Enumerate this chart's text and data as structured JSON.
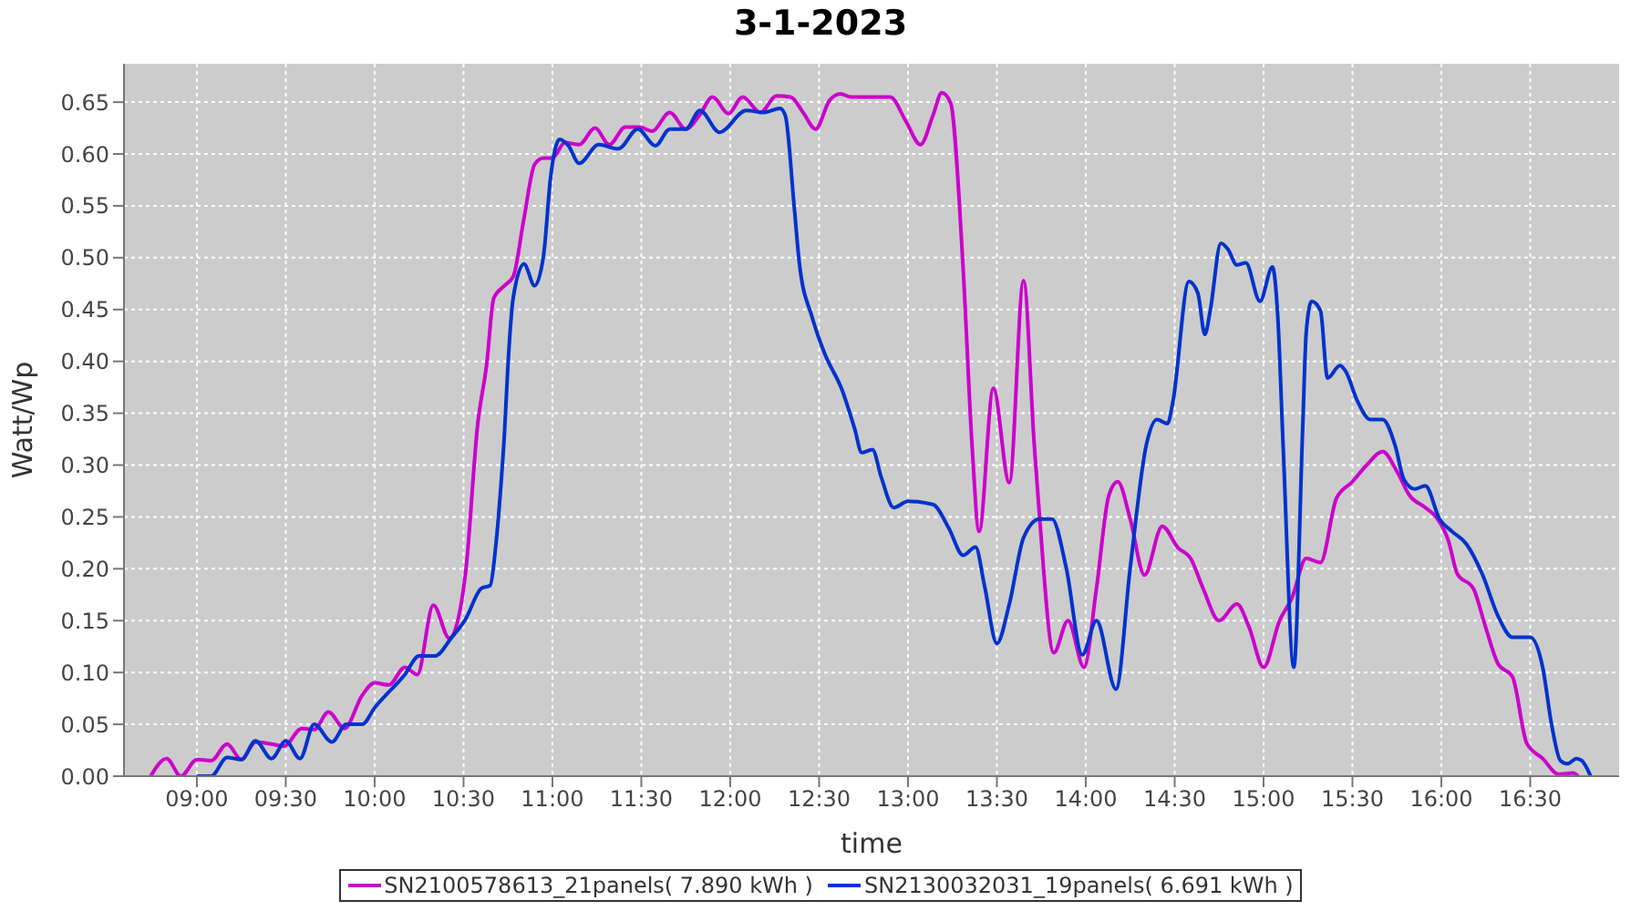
{
  "chart_data": {
    "type": "line",
    "title": "3-1-2023",
    "xlabel": "time",
    "ylabel": "Watt/Wp",
    "xlim": [
      8.59,
      17.0
    ],
    "ylim": [
      0,
      0.687
    ],
    "xticks": [
      {
        "value": 9,
        "label": "09:00"
      },
      {
        "value": 9.5,
        "label": "09:30"
      },
      {
        "value": 10,
        "label": "10:00"
      },
      {
        "value": 10.5,
        "label": "10:30"
      },
      {
        "value": 11,
        "label": "11:00"
      },
      {
        "value": 11.5,
        "label": "11:30"
      },
      {
        "value": 12,
        "label": "12:00"
      },
      {
        "value": 12.5,
        "label": "12:30"
      },
      {
        "value": 13,
        "label": "13:00"
      },
      {
        "value": 13.5,
        "label": "13:30"
      },
      {
        "value": 14,
        "label": "14:00"
      },
      {
        "value": 14.5,
        "label": "14:30"
      },
      {
        "value": 15,
        "label": "15:00"
      },
      {
        "value": 15.5,
        "label": "15:30"
      },
      {
        "value": 16,
        "label": "16:00"
      },
      {
        "value": 16.5,
        "label": "16:30"
      }
    ],
    "yticks": [
      {
        "value": 0,
        "label": "0.00"
      },
      {
        "value": 0.05,
        "label": "0.05"
      },
      {
        "value": 0.1,
        "label": "0.10"
      },
      {
        "value": 0.15,
        "label": "0.15"
      },
      {
        "value": 0.2,
        "label": "0.20"
      },
      {
        "value": 0.25,
        "label": "0.25"
      },
      {
        "value": 0.3,
        "label": "0.30"
      },
      {
        "value": 0.35,
        "label": "0.35"
      },
      {
        "value": 0.4,
        "label": "0.40"
      },
      {
        "value": 0.45,
        "label": "0.45"
      },
      {
        "value": 0.5,
        "label": "0.50"
      },
      {
        "value": 0.55,
        "label": "0.55"
      },
      {
        "value": 0.6,
        "label": "0.60"
      },
      {
        "value": 0.65,
        "label": "0.65"
      }
    ],
    "grid": true,
    "legend": "bottom",
    "line_style": "solid",
    "series": [
      {
        "name": "SN2100578613_21panels( 7.890 kWh )",
        "color": "#cc00cc",
        "x": [
          8.74,
          8.83,
          8.91,
          9.0,
          9.08,
          9.17,
          9.25,
          9.33,
          9.42,
          9.49,
          9.59,
          9.66,
          9.74,
          9.83,
          9.93,
          10.0,
          10.08,
          10.17,
          10.24,
          10.33,
          10.42,
          10.51,
          10.58,
          10.63,
          10.67,
          10.73,
          10.78,
          10.84,
          10.9,
          10.95,
          11.0,
          11.07,
          11.15,
          11.24,
          11.32,
          11.41,
          11.49,
          11.56,
          11.66,
          11.75,
          11.83,
          11.9,
          11.99,
          12.07,
          12.17,
          12.26,
          12.34,
          12.41,
          12.48,
          12.56,
          12.62,
          12.68,
          12.9,
          12.99,
          13.07,
          13.14,
          13.19,
          13.24,
          13.31,
          13.36,
          13.4,
          13.48,
          13.57,
          13.65,
          13.71,
          13.74,
          13.82,
          13.9,
          13.99,
          14.06,
          14.13,
          14.18,
          14.25,
          14.33,
          14.43,
          14.52,
          14.59,
          14.66,
          14.75,
          14.85,
          14.92,
          15.0,
          15.09,
          15.16,
          15.24,
          15.32,
          15.41,
          15.5,
          15.58,
          15.67,
          15.75,
          15.82,
          15.91,
          15.97,
          16.04,
          16.09,
          16.18,
          16.25,
          16.32,
          16.4,
          16.48,
          16.57,
          16.66,
          16.74,
          16.77
        ],
        "values": [
          0,
          0.017,
          0,
          0.016,
          0.015,
          0.031,
          0.016,
          0.033,
          0.031,
          0.029,
          0.046,
          0.045,
          0.062,
          0.046,
          0.078,
          0.09,
          0.088,
          0.105,
          0.098,
          0.165,
          0.133,
          0.194,
          0.34,
          0.397,
          0.461,
          0.473,
          0.482,
          0.538,
          0.59,
          0.596,
          0.596,
          0.611,
          0.609,
          0.625,
          0.609,
          0.626,
          0.626,
          0.622,
          0.64,
          0.624,
          0.638,
          0.655,
          0.639,
          0.655,
          0.64,
          0.656,
          0.655,
          0.64,
          0.624,
          0.652,
          0.658,
          0.655,
          0.655,
          0.631,
          0.609,
          0.637,
          0.659,
          0.649,
          0.49,
          0.32,
          0.236,
          0.374,
          0.283,
          0.478,
          0.32,
          0.25,
          0.119,
          0.15,
          0.105,
          0.181,
          0.271,
          0.284,
          0.248,
          0.194,
          0.241,
          0.22,
          0.21,
          0.181,
          0.15,
          0.166,
          0.143,
          0.105,
          0.15,
          0.172,
          0.21,
          0.206,
          0.268,
          0.284,
          0.3,
          0.313,
          0.294,
          0.271,
          0.259,
          0.25,
          0.227,
          0.195,
          0.181,
          0.143,
          0.108,
          0.096,
          0.032,
          0.017,
          0.002,
          0.003,
          0
        ]
      },
      {
        "name": "SN2130032031_19panels( 6.691 kWh )",
        "color": "#0033cc",
        "x": [
          9.0,
          9.08,
          9.17,
          9.25,
          9.33,
          9.42,
          9.5,
          9.58,
          9.66,
          9.76,
          9.84,
          9.93,
          10.0,
          10.17,
          10.25,
          10.34,
          10.43,
          10.51,
          10.6,
          10.65,
          10.68,
          10.71,
          10.73,
          10.75,
          10.78,
          10.84,
          10.9,
          10.95,
          10.99,
          11.04,
          11.09,
          11.15,
          11.26,
          11.37,
          11.48,
          11.58,
          11.66,
          11.75,
          11.83,
          11.94,
          12.09,
          12.19,
          12.28,
          12.31,
          12.36,
          12.39,
          12.46,
          12.53,
          12.63,
          12.7,
          12.74,
          12.8,
          12.85,
          12.92,
          13.0,
          13.14,
          13.23,
          13.31,
          13.38,
          13.43,
          13.5,
          13.57,
          13.65,
          13.74,
          13.81,
          13.89,
          13.98,
          14.06,
          14.17,
          14.25,
          14.34,
          14.4,
          14.46,
          14.49,
          14.58,
          14.63,
          14.67,
          14.7,
          14.76,
          14.8,
          14.85,
          14.9,
          14.98,
          15.05,
          15.08,
          15.11,
          15.17,
          15.22,
          15.24,
          15.27,
          15.32,
          15.36,
          15.43,
          15.46,
          15.53,
          15.6,
          15.67,
          15.74,
          15.79,
          15.85,
          15.91,
          15.99,
          16.06,
          16.14,
          16.23,
          16.32,
          16.4,
          16.5,
          16.57,
          16.62,
          16.67,
          16.71,
          16.76,
          16.79,
          16.84
        ],
        "values": [
          0,
          0,
          0.018,
          0.016,
          0.034,
          0.017,
          0.034,
          0.017,
          0.05,
          0.033,
          0.05,
          0.05,
          0.066,
          0.098,
          0.116,
          0.116,
          0.133,
          0.151,
          0.181,
          0.184,
          0.22,
          0.28,
          0.33,
          0.397,
          0.462,
          0.494,
          0.473,
          0.502,
          0.578,
          0.614,
          0.608,
          0.591,
          0.609,
          0.605,
          0.624,
          0.608,
          0.624,
          0.624,
          0.642,
          0.621,
          0.642,
          0.64,
          0.644,
          0.637,
          0.549,
          0.493,
          0.443,
          0.408,
          0.372,
          0.335,
          0.312,
          0.315,
          0.288,
          0.259,
          0.265,
          0.262,
          0.239,
          0.213,
          0.221,
          0.184,
          0.128,
          0.166,
          0.23,
          0.248,
          0.248,
          0.201,
          0.117,
          0.15,
          0.084,
          0.201,
          0.319,
          0.344,
          0.34,
          0.361,
          0.477,
          0.466,
          0.426,
          0.449,
          0.514,
          0.508,
          0.493,
          0.495,
          0.458,
          0.491,
          0.443,
          0.319,
          0.105,
          0.335,
          0.428,
          0.458,
          0.449,
          0.384,
          0.396,
          0.391,
          0.361,
          0.344,
          0.344,
          0.319,
          0.286,
          0.277,
          0.28,
          0.248,
          0.236,
          0.224,
          0.195,
          0.154,
          0.134,
          0.134,
          0.105,
          0.05,
          0.015,
          0.012,
          0.017,
          0.015,
          0
        ]
      }
    ]
  }
}
